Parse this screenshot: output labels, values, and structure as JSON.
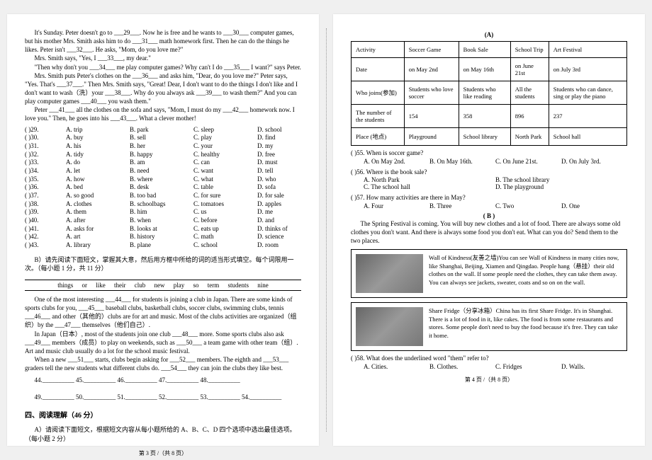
{
  "left": {
    "passage1": {
      "l1": "It's Sunday. Peter doesn't go to ___29___. Now he is free and he wants to ___30___ computer games, but his mother Mrs. Smith asks him to do ___31___ math homework first. Then he can do the things he likes. Peter isn't ___32___. He asks, \"Mom, do you love me?\"",
      "l2": "Mrs. Smith says, \"Yes, I ___33___, my dear.\"",
      "l3": "\"Then why don't you ___34___ me play computer games? Why can't I do ___35___ I want?\" says Peter.",
      "l4": "Mrs. Smith puts Peter's clothes on the ___36___ and asks him, \"Dear, do you love me?\" Peter says, \"Yes. That's ___37___.\" Then Mrs. Smith says, \"Great! Dear, I don't want to do the things I don't like and I don't want to wash（洗）your ___38___. Why do you always ask ___39___ to wash them?\" And you can play computer games ___40___ you wash them.\"",
      "l5": "Peter ___41___ all the clothes on the sofa and says, \"Mom, I must do my ___42___ homework now. I love you.\" Then, he goes into his ___43___. What a clever mother!"
    },
    "choices": [
      [
        "( )29.",
        "A. trip",
        "B. park",
        "C. sleep",
        "D. school"
      ],
      [
        "( )30.",
        "A. buy",
        "B. sell",
        "C. play",
        "D. find"
      ],
      [
        "( )31.",
        "A. his",
        "B. her",
        "C. your",
        "D. my"
      ],
      [
        "( )32.",
        "A. tidy",
        "B. happy",
        "C. healthy",
        "D. free"
      ],
      [
        "( )33.",
        "A. do",
        "B. am",
        "C. can",
        "D. must"
      ],
      [
        "( )34.",
        "A. let",
        "B. need",
        "C. want",
        "D. tell"
      ],
      [
        "( )35.",
        "A. how",
        "B. where",
        "C. what",
        "D. who"
      ],
      [
        "( )36.",
        "A. bed",
        "B. desk",
        "C. table",
        "D. sofa"
      ],
      [
        "( )37.",
        "A. so good",
        "B. too bad",
        "C. for sure",
        "D. for sale"
      ],
      [
        "( )38.",
        "A. clothes",
        "B. schoolbags",
        "C. tomatoes",
        "D. apples"
      ],
      [
        "( )39.",
        "A. them",
        "B. him",
        "C. us",
        "D. me"
      ],
      [
        "( )40.",
        "A. after",
        "B. when",
        "C. before",
        "D. and"
      ],
      [
        "( )41.",
        "A. asks for",
        "B. looks at",
        "C. eats up",
        "D. thinks of"
      ],
      [
        "( )42.",
        "A. art",
        "B. history",
        "C. math",
        "D. science"
      ],
      [
        "( )43.",
        "A. library",
        "B. plane",
        "C. school",
        "D. room"
      ]
    ],
    "instrB": "B）请先阅读下面短文，掌握其大意，然后用方框中所给的词的适当形式填空。每个词限用一次。（每小题 1 分，共 11 分）",
    "bank": "things    or    like    their    club    new    play    so    term    students    nine",
    "passage2": {
      "p1": "One of the most interesting ___44___ for students is joining a club in Japan. There are some kinds of sports clubs for you, ___45___ baseball clubs, basketball clubs, soccer clubs, swimming clubs, tennis ___46___ and other（其他的）clubs are for art and music. Most of the clubs activities are organized（组织）by the ___47___ themselves（他们自己）.",
      "p2": "In Japan（日本）, most of the students join one club ___48___ more. Some sports clubs also ask ___49___ members（成员）to play on weekends, such as ___50___ a team game with other team（组）. Art and music club usually do a lot for the school music festival.",
      "p3": "When a new ___51___ starts, clubs begin asking for ___52___ members. The eighth and ___53___ graders tell the new students what different clubs do. ___54___ they can join the clubs they like best."
    },
    "blanks1": "44.__________ 45.__________ 46.__________ 47.__________ 48.__________",
    "blanks2": "49.__________ 50.__________ 51.__________ 52.__________ 53.__________ 54.__________",
    "heading": "四、阅读理解（46 分）",
    "instrA": "A）请阅读下面短文，根据短文内容从每小题所给的 A、B、C、D 四个选项中选出最佳选项。（每小题 2 分）",
    "foot": "第 3 页 /（共 8 页）"
  },
  "right": {
    "tableTitle": "(A)",
    "table": {
      "rows": [
        [
          "Activity",
          "Soccer Game",
          "Book Sale",
          "School Trip",
          "Art Festival"
        ],
        [
          "Date",
          "on May 2nd",
          "on May 16th",
          "on June 21st",
          "on July 3rd"
        ],
        [
          "Who joins(参加)",
          "Students who love soccer",
          "Students who like reading",
          "All the students",
          "Students who can dance, sing or play the piano"
        ],
        [
          "The number of the students",
          "154",
          "358",
          "896",
          "237"
        ],
        [
          "Place (地点)",
          "Playground",
          "School library",
          "North Park",
          "School hall"
        ]
      ]
    },
    "q55": "( )55. When is soccer game?",
    "q55opts": [
      "A. On May 2nd.",
      "B. On May 16th.",
      "C. On June 21st.",
      "D. On July 3rd."
    ],
    "q56": "( )56. Where is the book sale?",
    "q56a": "A. North Park",
    "q56b": "B. The school library",
    "q56c": "C. The school hall",
    "q56d": "D. The playground",
    "q57": "( )57. How many activities are there in May?",
    "q57opts": [
      "A. Four",
      "B. Three",
      "C. Two",
      "D. One"
    ],
    "titleB": "( B )",
    "introB": "The Spring Festival is coming. You will buy new clothes and a lot of food. There are always some old clothes you don't want. And there is always some food you don't eat. What can you do? Send them to the two places.",
    "box1": "Wall of Kindness(友善之墙)You can see Wall of Kindness in many cities now, like Shanghai, Beijing, Xiamen and Qingdao. People hang（悬挂）their old clothes on the wall. If some people need the clothes, they can take them away. You can always see jackets, sweater, coats and so on on the wall.",
    "box2": "Share Fridge（分享冰箱）China has its first Share Fridge. It's in Shanghai. There is a lot of food in it, like cakes. The food is from some restaurants and stores. Some people don't need to buy the food because it's free. They can take it home.",
    "q58": "( )58. What does the underlined word \"them\" refer to?",
    "q58opts": [
      "A. Cities.",
      "B. Clothes.",
      "C. Fridges",
      "D. Walls."
    ],
    "foot": "第 4 页 /（共 8 页）"
  }
}
